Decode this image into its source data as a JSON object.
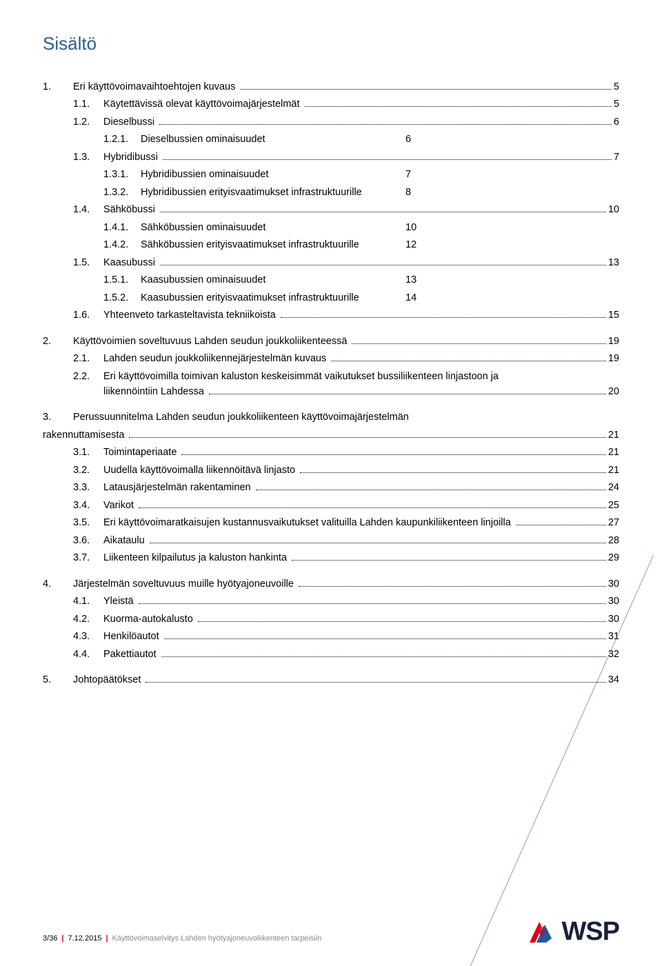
{
  "title": "Sisältö",
  "colors": {
    "title": "#2b5f8e",
    "accent_red": "#e2001a",
    "accent_blue": "#2158a5",
    "logo_navy": "#1a1f3a"
  },
  "toc": [
    {
      "level": 1,
      "num": "1.",
      "text": "Eri käyttövoimavaihtoehtojen kuvaus",
      "page": "5"
    },
    {
      "level": 2,
      "num": "1.1.",
      "text": "Käytettävissä olevat käyttövoimajärjestelmät",
      "page": "5"
    },
    {
      "level": 2,
      "num": "1.2.",
      "text": "Dieselbussi",
      "page": "6"
    },
    {
      "level": 3,
      "num": "1.2.1.",
      "text": "Dieselbussien ominaisuudet",
      "inline": "6"
    },
    {
      "level": 2,
      "num": "1.3.",
      "text": "Hybridibussi",
      "page": "7"
    },
    {
      "level": 3,
      "num": "1.3.1.",
      "text": "Hybridibussien ominaisuudet",
      "inline": "7"
    },
    {
      "level": 3,
      "num": "1.3.2.",
      "text": "Hybridibussien erityisvaatimukset infrastruktuurille",
      "inline": "8"
    },
    {
      "level": 2,
      "num": "1.4.",
      "text": "Sähköbussi",
      "page": "10"
    },
    {
      "level": 3,
      "num": "1.4.1.",
      "text": "Sähköbussien ominaisuudet",
      "inline": "10"
    },
    {
      "level": 3,
      "num": "1.4.2.",
      "text": "Sähköbussien erityisvaatimukset infrastruktuurille",
      "inline": "12"
    },
    {
      "level": 2,
      "num": "1.5.",
      "text": "Kaasubussi",
      "page": "13"
    },
    {
      "level": 3,
      "num": "1.5.1.",
      "text": "Kaasubussien ominaisuudet",
      "inline": "13"
    },
    {
      "level": 3,
      "num": "1.5.2.",
      "text": "Kaasubussien erityisvaatimukset infrastruktuurille",
      "inline": "14"
    },
    {
      "level": 2,
      "num": "1.6.",
      "text": "Yhteenveto tarkasteltavista tekniikoista",
      "page": "15"
    },
    {
      "gap": true
    },
    {
      "level": 1,
      "num": "2.",
      "text": "Käyttövoimien soveltuvuus Lahden seudun joukkoliikenteessä",
      "page": " 19"
    },
    {
      "level": 2,
      "num": "2.1.",
      "text": "Lahden seudun joukkoliikennejärjestelmän kuvaus",
      "page": "19"
    },
    {
      "level": 2,
      "num": "2.2.",
      "text": "Eri käyttövoimilla toimivan kaluston keskeisimmät vaikutukset bussiliikenteen linjastoon ja liikennöintiin Lahdessa",
      "wrap": true,
      "page": "20"
    },
    {
      "gap": true
    },
    {
      "level": 1,
      "num": "3.",
      "text": "Perussuunnitelma Lahden seudun joukkoliikenteen käyttövoimajärjestelmän",
      "cont": "rakennuttamisesta",
      "page": " 21"
    },
    {
      "level": 2,
      "num": "3.1.",
      "text": "Toimintaperiaate",
      "page": "21"
    },
    {
      "level": 2,
      "num": "3.2.",
      "text": "Uudella käyttövoimalla liikennöitävä linjasto",
      "page": "21"
    },
    {
      "level": 2,
      "num": "3.3.",
      "text": "Latausjärjestelmän rakentaminen",
      "page": "24"
    },
    {
      "level": 2,
      "num": "3.4.",
      "text": "Varikot",
      "page": "25"
    },
    {
      "level": 2,
      "num": "3.5.",
      "text": "Eri käyttövoimaratkaisujen kustannusvaikutukset valituilla Lahden kaupunkiliikenteen linjoilla",
      "page": "27"
    },
    {
      "level": 2,
      "num": "3.6.",
      "text": "Aikataulu",
      "page": "28"
    },
    {
      "level": 2,
      "num": "3.7.",
      "text": "Liikenteen kilpailutus ja kaluston hankinta",
      "page": "29"
    },
    {
      "gap": true
    },
    {
      "level": 1,
      "num": "4.",
      "text": "Järjestelmän soveltuvuus muille hyötyajoneuvoille",
      "page": " 30"
    },
    {
      "level": 2,
      "num": "4.1.",
      "text": "Yleistä",
      "page": "30"
    },
    {
      "level": 2,
      "num": "4.2.",
      "text": "Kuorma-autokalusto",
      "page": "30"
    },
    {
      "level": 2,
      "num": "4.3.",
      "text": "Henkilöautot",
      "page": "31"
    },
    {
      "level": 2,
      "num": "4.4.",
      "text": "Pakettiautot",
      "page": "32"
    },
    {
      "gap": true
    },
    {
      "level": 1,
      "num": "5.",
      "text": "Johtopäätökset",
      "page": " 34"
    }
  ],
  "footer": {
    "page_info": "3/36",
    "date": "7.12.2015",
    "doc_title": "Käyttövoimaselvitys Lahden hyötyajoneuvoliikenteen tarpeisiin"
  },
  "logo_text": "WSP"
}
